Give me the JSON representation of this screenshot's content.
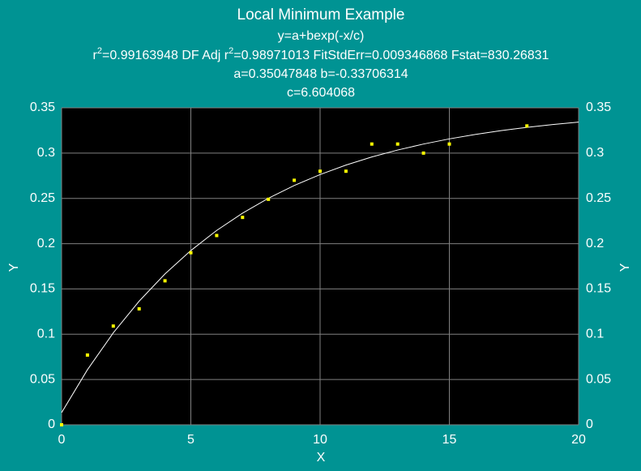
{
  "chart_data": {
    "type": "scatter",
    "title": "Local Minimum Example",
    "subtitle": "y=a+bexp(-x/c)",
    "stats": [
      "r",
      "2",
      "=0.99163948  DF Adj r",
      "2",
      "=0.98971013  FitStdErr=0.009346868  Fstat=830.26831"
    ],
    "params": [
      "a=0.35047848 b=-0.33706314",
      "c=6.604068"
    ],
    "x_label": "X",
    "y_label": "Y",
    "xlim": [
      0,
      20
    ],
    "ylim": [
      0,
      0.35
    ],
    "xticks": [
      0,
      5,
      10,
      15,
      20
    ],
    "yticks": [
      0,
      0.05,
      0.1,
      0.15,
      0.2,
      0.25,
      0.3,
      0.35
    ],
    "grid": true,
    "series": [
      {
        "color": "#ffff00",
        "x": [
          0,
          1,
          2,
          3,
          4,
          5,
          6,
          7,
          8,
          9,
          10,
          11,
          12,
          13,
          14,
          15,
          18
        ],
        "values": [
          0,
          0.077,
          0.109,
          0.128,
          0.159,
          0.19,
          0.209,
          0.229,
          0.249,
          0.27,
          0.28,
          0.28,
          0.31,
          0.31,
          0.3,
          0.31,
          0.33
        ]
      },
      {
        "color": "#ffffff",
        "x": [
          0,
          1,
          2,
          3,
          4,
          5,
          6,
          7,
          8,
          9,
          10,
          11,
          12,
          13,
          14,
          15,
          16,
          17,
          18,
          19,
          20
        ],
        "values": [
          0.0134,
          0.0608,
          0.1015,
          0.1365,
          0.1666,
          0.1924,
          0.2146,
          0.2337,
          0.2501,
          0.2642,
          0.2763,
          0.2868,
          0.2957,
          0.3034,
          0.31,
          0.3157,
          0.3206,
          0.3248,
          0.3284,
          0.3315,
          0.3342
        ]
      }
    ]
  }
}
